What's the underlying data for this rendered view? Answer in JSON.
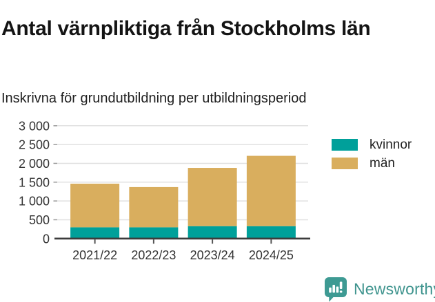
{
  "header": {
    "title": "Antal värnpliktiga från Stockholms län",
    "subtitle": "Inskrivna för grundutbildning per utbildningsperiod"
  },
  "chart_data": {
    "type": "bar",
    "stacked": true,
    "title": "Antal värnpliktiga från Stockholms län",
    "subtitle": "Inskrivna för grundutbildning per utbildningsperiod",
    "categories": [
      "2021/22",
      "2022/23",
      "2023/24",
      "2024/25"
    ],
    "series": [
      {
        "name": "kvinnor",
        "color": "#00A09A",
        "values": [
          300,
          300,
          330,
          330
        ]
      },
      {
        "name": "män",
        "color": "#D9AE5E",
        "values": [
          1160,
          1070,
          1550,
          1870
        ]
      }
    ],
    "stacked_totals": [
      1460,
      1370,
      1880,
      2200
    ],
    "xlabel": "",
    "ylabel": "",
    "ylim": [
      0,
      3000
    ],
    "yticks": [
      0,
      500,
      1000,
      1500,
      2000,
      2500,
      3000
    ],
    "ytick_labels": [
      "0",
      "500",
      "1 000",
      "1 500",
      "2 000",
      "2 500",
      "3 000"
    ],
    "grid": "horizontal",
    "legend_position": "right"
  },
  "legend": {
    "items": [
      {
        "label": "kvinnor",
        "color": "#00A09A"
      },
      {
        "label": "män",
        "color": "#D9AE5E"
      }
    ]
  },
  "branding": {
    "name": "Newsworthy",
    "color": "#3F948E",
    "icon": "newsworthy-speech-bubble-bar-chart-icon",
    "icon_color": "#3E9A93"
  },
  "colors": {
    "bar_kvinnor": "#00A09A",
    "bar_man": "#D9AE5E",
    "axis_line": "#3C3C3C",
    "gridline": "#E0E0E0",
    "tick": "#999999",
    "axis_text": "#333333",
    "title_text": "#141414"
  }
}
